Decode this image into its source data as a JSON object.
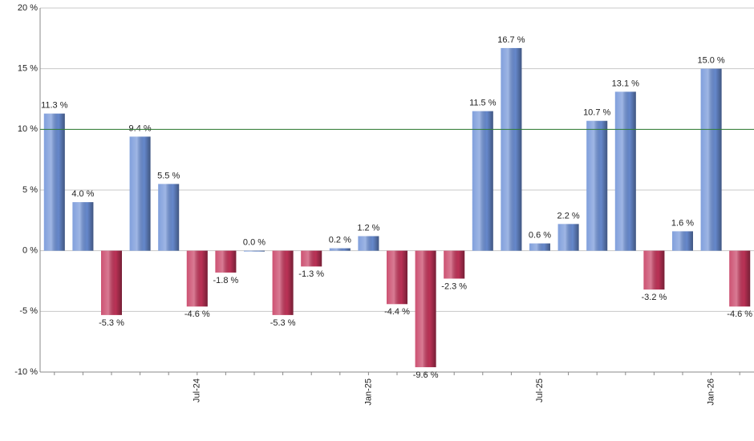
{
  "chart_data": {
    "type": "bar",
    "categories": [
      null,
      null,
      null,
      null,
      null,
      "Jul-24",
      null,
      null,
      null,
      null,
      null,
      "Jan-25",
      null,
      null,
      null,
      null,
      null,
      "Jul-25",
      null,
      null,
      null,
      null,
      null,
      "Jan-26",
      null
    ],
    "values": [
      11.3,
      4.0,
      -5.3,
      9.4,
      5.5,
      -4.6,
      -1.8,
      0.0,
      -5.3,
      -1.3,
      0.2,
      1.2,
      -4.4,
      -9.6,
      -2.3,
      11.5,
      16.7,
      0.6,
      2.2,
      10.7,
      13.1,
      -3.2,
      1.6,
      15.0,
      -4.6
    ],
    "value_labels": [
      "11.3 %",
      "4.0 %",
      "-5.3 %",
      "9.4 %",
      "5.5 %",
      "-4.6 %",
      "-1.8 %",
      "0.0 %",
      "-5.3 %",
      "-1.3 %",
      "0.2 %",
      "1.2 %",
      "-4.4 %",
      "-9.6 %",
      "-2.3 %",
      "11.5 %",
      "16.7 %",
      "0.6 %",
      "2.2 %",
      "10.7 %",
      "13.1 %",
      "-3.2 %",
      "1.6 %",
      "15.0 %",
      "-4.6 %"
    ],
    "positive_color": "#6b8fd6",
    "negative_color": "#c4345a",
    "reference_line": 10,
    "reference_color": "#2e7d32",
    "ylim": [
      -10,
      20
    ],
    "yticks": [
      {
        "value": -10,
        "label": "-10 %"
      },
      {
        "value": -5,
        "label": "-5 %"
      },
      {
        "value": 0,
        "label": "0 %"
      },
      {
        "value": 5,
        "label": "5 %"
      },
      {
        "value": 10,
        "label": "10 %"
      },
      {
        "value": 15,
        "label": "15 %"
      },
      {
        "value": 20,
        "label": "20 %"
      }
    ],
    "grid": true
  }
}
